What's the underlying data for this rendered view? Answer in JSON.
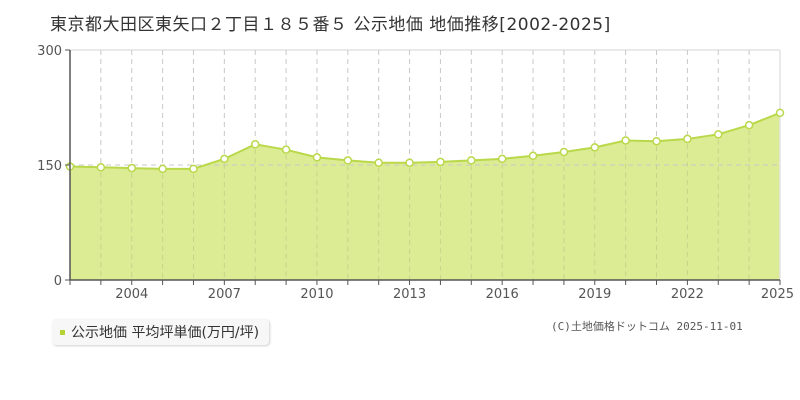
{
  "title": "東京都大田区東矢口２丁目１８５番５ 公示地価 地価推移[2002-2025]",
  "legend": {
    "label": "公示地価 平均坪単価(万円/坪)",
    "color": "#b5d334"
  },
  "copyright": "(C)土地価格ドットコム 2025-11-01",
  "colors": {
    "fill": "#dcec94",
    "line": "#b9d84a",
    "point_fill": "#ffffff",
    "grid": "#c8c8c8",
    "axis": "#555555"
  },
  "chart_data": {
    "type": "area",
    "title": "東京都大田区東矢口２丁目１８５番５ 公示地価 地価推移[2002-2025]",
    "xlabel": "",
    "ylabel": "",
    "ylim": [
      0,
      300
    ],
    "y_ticks": [
      0,
      150,
      300
    ],
    "x_tick_labels": [
      "2004",
      "2007",
      "2010",
      "2013",
      "2016",
      "2019",
      "2022",
      "2025"
    ],
    "grid": true,
    "legend_position": "bottom-left",
    "x": [
      2002,
      2003,
      2004,
      2005,
      2006,
      2007,
      2008,
      2009,
      2010,
      2011,
      2012,
      2013,
      2014,
      2015,
      2016,
      2017,
      2018,
      2019,
      2020,
      2021,
      2022,
      2023,
      2024,
      2025
    ],
    "series": [
      {
        "name": "公示地価 平均坪単価(万円/坪)",
        "values": [
          148,
          147,
          146,
          145,
          145,
          158,
          177,
          170,
          160,
          156,
          153,
          153,
          154,
          156,
          158,
          162,
          167,
          173,
          182,
          181,
          184,
          190,
          202,
          218
        ]
      }
    ]
  }
}
